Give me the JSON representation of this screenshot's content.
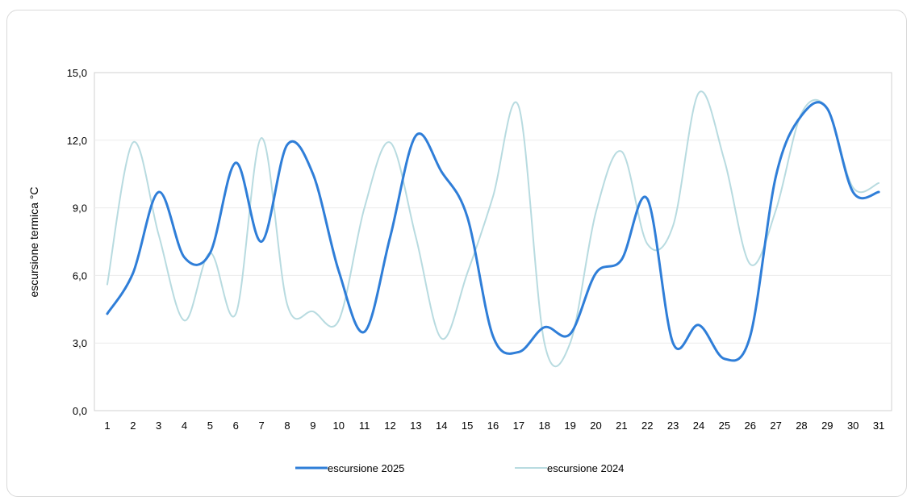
{
  "chart_data": {
    "type": "line",
    "ylabel": "escursione termica °C",
    "ylim": [
      0,
      15
    ],
    "yticks": [
      "0,0",
      "3,0",
      "6,0",
      "9,0",
      "12,0",
      "15,0"
    ],
    "categories": [
      "1",
      "2",
      "3",
      "4",
      "5",
      "6",
      "7",
      "8",
      "9",
      "10",
      "11",
      "12",
      "13",
      "14",
      "15",
      "16",
      "17",
      "18",
      "19",
      "20",
      "21",
      "22",
      "23",
      "24",
      "25",
      "26",
      "27",
      "28",
      "29",
      "30",
      "31"
    ],
    "grid": true,
    "legend_position": "bottom",
    "series": [
      {
        "name": "escursione 2025",
        "color": "#2f7ed8",
        "values": [
          4.3,
          6.1,
          9.7,
          6.8,
          7.0,
          11.0,
          7.5,
          11.8,
          10.5,
          6.2,
          3.5,
          7.7,
          12.2,
          10.6,
          8.6,
          3.3,
          2.6,
          3.7,
          3.4,
          6.1,
          6.7,
          9.4,
          3.0,
          3.8,
          2.3,
          3.3,
          10.4,
          13.1,
          13.4,
          9.7,
          9.7
        ]
      },
      {
        "name": "escursione 2024",
        "color": "#b8dbe0",
        "values": [
          5.6,
          11.9,
          7.8,
          4.0,
          7.0,
          4.3,
          12.1,
          4.7,
          4.4,
          4.0,
          9.0,
          11.9,
          7.7,
          3.2,
          6.1,
          9.5,
          13.5,
          3.0,
          3.0,
          8.8,
          11.5,
          7.4,
          8.2,
          14.1,
          11.1,
          6.5,
          8.9,
          13.2,
          13.4,
          9.9,
          10.1
        ]
      }
    ]
  }
}
